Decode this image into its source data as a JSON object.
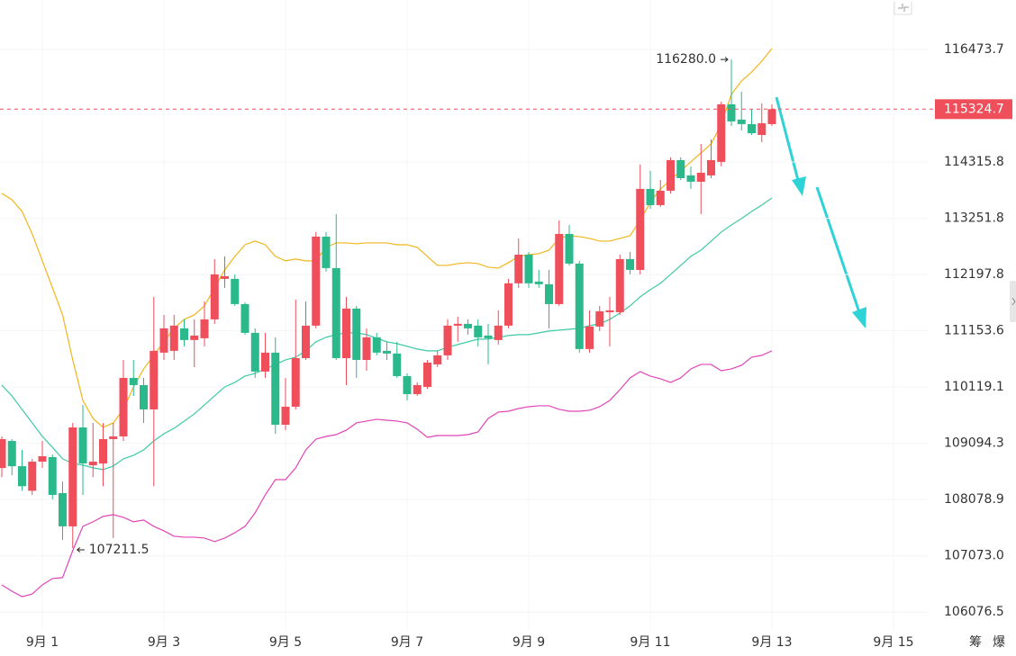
{
  "chart_data": {
    "type": "candlestick",
    "log_scale": true,
    "grid": true,
    "up_color": "#ef4e5b",
    "down_color": "#2bb98c",
    "ylim": [
      105763,
      117436
    ],
    "yticks": [
      116473.7,
      114315.8,
      113251.8,
      112197.8,
      111153.6,
      110119.1,
      109094.3,
      108078.9,
      {
        "value": 107073,
        "label": "107073.0"
      },
      106076.5
    ],
    "xlim": [
      0,
      90
    ],
    "xticks": [
      {
        "value": 4,
        "label": "9月 1"
      },
      {
        "value": 16,
        "label": "9月 3"
      },
      {
        "value": 28,
        "label": "9月 5"
      },
      {
        "value": 40,
        "label": "9月 7"
      },
      {
        "value": 52,
        "label": "9月 9"
      },
      {
        "value": 64,
        "label": "9月 11"
      },
      {
        "value": 76,
        "label": "9月 13"
      },
      {
        "value": 88,
        "label": "9月 15"
      }
    ],
    "open": [
      108647,
      109137,
      108680,
      108237,
      108762,
      108844,
      108196,
      107599,
      109383,
      108696,
      108729,
      109170,
      109220,
      110287,
      110155,
      109711,
      110751,
      110784,
      111199,
      110983,
      111016,
      111365,
      112117,
      112117,
      111648,
      111116,
      110403,
      110751,
      109432,
      109760,
      110650,
      111249,
      112907,
      112318,
      110650,
      111565,
      110617,
      111033,
      110784,
      110734,
      110320,
      109990,
      110122,
      110535,
      110701,
      111249,
      111282,
      111249,
      111066,
      110983,
      111249,
      112034,
      112569,
      112067,
      112017,
      111648,
      112958,
      112402,
      110817,
      111232,
      111498,
      111498,
      112487,
      112284,
      113806,
      113500,
      113772,
      114352,
      114062,
      113942,
      114062,
      114318,
      115418,
      115125,
      115038,
      114831,
      115038
    ],
    "high": [
      109220,
      109170,
      108975,
      108811,
      109137,
      108893,
      108401,
      109465,
      109793,
      109465,
      109465,
      109465,
      110617,
      110617,
      110287,
      111783,
      111448,
      111448,
      111365,
      111365,
      111699,
      112487,
      112537,
      112201,
      111682,
      111199,
      111116,
      111033,
      110287,
      111732,
      111699,
      112992,
      112992,
      113331,
      111783,
      111615,
      111199,
      111116,
      110950,
      110950,
      110370,
      110205,
      110617,
      110784,
      111365,
      111415,
      111365,
      111365,
      111282,
      111532,
      112117,
      112873,
      112622,
      112284,
      112284,
      113212,
      113127,
      112453,
      111532,
      111615,
      111783,
      112569,
      112622,
      114267,
      114147,
      113976,
      114404,
      114404,
      114233,
      114660,
      114746,
      115469,
      116280.0,
      115659,
      115315,
      115435,
      115418
    ],
    "low": [
      108483,
      108516,
      108237,
      108163,
      108647,
      108083,
      107358,
      107211.5,
      108163,
      108483,
      108319,
      107390,
      109137,
      109957,
      109465,
      108319,
      110617,
      110617,
      110867,
      110485,
      110867,
      111282,
      111950,
      111615,
      111083,
      110287,
      110287,
      109268,
      109334,
      109711,
      110617,
      111199,
      112251,
      110617,
      110155,
      110287,
      110419,
      110701,
      110617,
      110287,
      109875,
      109957,
      110089,
      110485,
      110617,
      110950,
      111083,
      110867,
      110535,
      110900,
      111199,
      111950,
      111950,
      111950,
      111199,
      111615,
      112368,
      110751,
      110751,
      111149,
      110867,
      111448,
      112201,
      112201,
      113432,
      113466,
      113721,
      113976,
      113806,
      113331,
      114010,
      114233,
      115003,
      114917,
      114831,
      114694,
      115003
    ],
    "close": [
      109170,
      108680,
      108319,
      108762,
      108860,
      108163,
      107599,
      109383,
      108729,
      108762,
      109170,
      109220,
      110287,
      110155,
      109711,
      110784,
      111199,
      111249,
      110983,
      111066,
      111365,
      112201,
      112167,
      111648,
      111116,
      110403,
      110751,
      109432,
      109760,
      110650,
      111249,
      112907,
      112318,
      110650,
      111565,
      110617,
      111033,
      110751,
      110734,
      110320,
      109990,
      110155,
      110568,
      110701,
      111249,
      111282,
      111199,
      111033,
      111016,
      111249,
      112034,
      112569,
      112034,
      112017,
      111648,
      112958,
      112402,
      110817,
      111232,
      111515,
      111532,
      112487,
      112284,
      113806,
      113500,
      113772,
      114352,
      114010,
      113942,
      114113,
      114352,
      115418,
      115090,
      115038,
      114865,
      115055,
      115324.7
    ],
    "bands": [
      {
        "color": "#f2b51c",
        "values": [
          113721,
          113602,
          113381,
          112958,
          112453,
          111950,
          111448,
          110617,
          109874,
          109547,
          109383,
          109465,
          109711,
          110122,
          110452,
          110701,
          110950,
          111199,
          111365,
          111448,
          111615,
          111950,
          112284,
          112537,
          112755,
          112823,
          112755,
          112537,
          112453,
          112487,
          112453,
          112453,
          112705,
          112789,
          112789,
          112772,
          112789,
          112789,
          112789,
          112755,
          112755,
          112705,
          112537,
          112368,
          112368,
          112402,
          112419,
          112402,
          112335,
          112318,
          112419,
          112537,
          112570,
          112587,
          112654,
          112874,
          112924,
          112907,
          112874,
          112823,
          112823,
          112874,
          112924,
          113211,
          113551,
          113806,
          113976,
          114147,
          114318,
          114489,
          114660,
          115039,
          115607,
          115865,
          116039,
          116248,
          116491
        ]
      },
      {
        "color": "#3fcaa5",
        "values": [
          110155,
          109957,
          109711,
          109465,
          109219,
          109022,
          108813,
          108732,
          108700,
          108651,
          108619,
          108683,
          108813,
          108878,
          108975,
          109137,
          109268,
          109367,
          109498,
          109629,
          109793,
          109957,
          110122,
          110205,
          110320,
          110370,
          110452,
          110535,
          110617,
          110667,
          110784,
          110950,
          111033,
          111083,
          111116,
          111116,
          111083,
          111016,
          110950,
          110917,
          110867,
          110817,
          110784,
          110784,
          110850,
          110900,
          110950,
          111000,
          111000,
          111033,
          111066,
          111083,
          111083,
          111116,
          111149,
          111166,
          111182,
          111199,
          111249,
          111282,
          111365,
          111482,
          111615,
          111783,
          111917,
          112034,
          112201,
          112368,
          112537,
          112654,
          112823,
          112992,
          113127,
          113246,
          113381,
          113500,
          113636
        ]
      },
      {
        "color": "#e244b8",
        "values": [
          106557,
          106445,
          106349,
          106397,
          106557,
          106670,
          106686,
          107166,
          107599,
          107680,
          107777,
          107809,
          107760,
          107680,
          107712,
          107599,
          107518,
          107422,
          107406,
          107406,
          107390,
          107326,
          107390,
          107486,
          107599,
          107841,
          108163,
          108438,
          108438,
          108651,
          108975,
          109170,
          109219,
          109252,
          109334,
          109465,
          109498,
          109531,
          109514,
          109498,
          109465,
          109350,
          109203,
          109235,
          109235,
          109235,
          109252,
          109301,
          109547,
          109662,
          109678,
          109727,
          109760,
          109777,
          109777,
          109711,
          109678,
          109678,
          109695,
          109760,
          109875,
          110072,
          110287,
          110403,
          110320,
          110271,
          110205,
          110287,
          110452,
          110535,
          110535,
          110419,
          110452,
          110518,
          110667,
          110701,
          110784
        ]
      }
    ],
    "annotations": {
      "high": "116280.0",
      "low": "107211.5"
    },
    "corner_labels": [
      "筹",
      "爆"
    ]
  }
}
